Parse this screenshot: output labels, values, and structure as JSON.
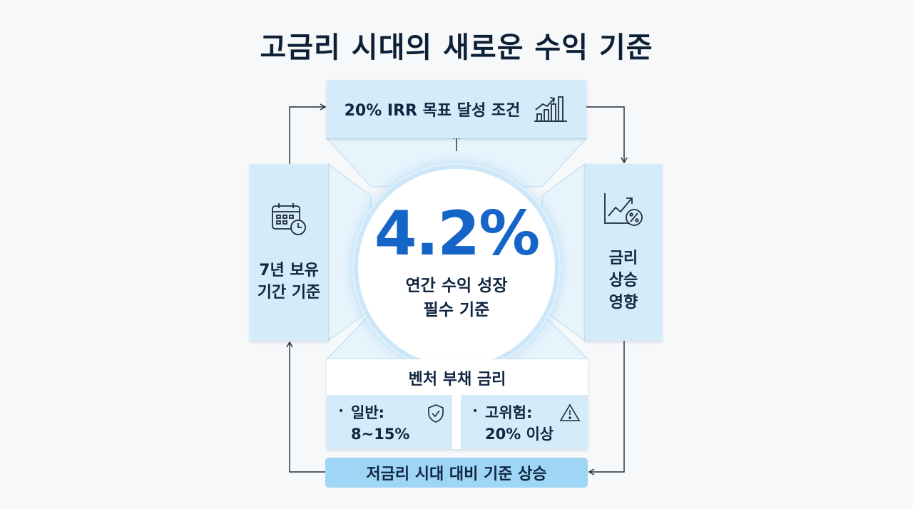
{
  "title": "고금리 시대의 새로운 수익 기준",
  "top_box": {
    "label": "20% IRR 목표 달성 조건",
    "icon": "bar-chart-growth-icon"
  },
  "left_box": {
    "label": "7년 보유\n기간 기준",
    "icon": "calendar-clock-icon"
  },
  "right_box": {
    "label": "금리\n상승\n영향",
    "icon": "trend-up-percent-icon"
  },
  "center": {
    "value": "4.2%",
    "caption": "연간 수익 성장\n필수 기준"
  },
  "bottom_box": {
    "title": "벤처 부채 금리",
    "items": [
      {
        "bullet": "•",
        "text": "일반:\n8~15%",
        "icon": "shield-check-icon"
      },
      {
        "bullet": "•",
        "text": "고위험:\n20% 이상",
        "icon": "warning-triangle-icon"
      }
    ]
  },
  "footer": {
    "label": "저금리 시대 대비 기준 상승"
  },
  "colors": {
    "accent": "#1565c8",
    "panel": "#d4ebf9",
    "pill": "#9fd6f5",
    "text": "#0f2540"
  }
}
